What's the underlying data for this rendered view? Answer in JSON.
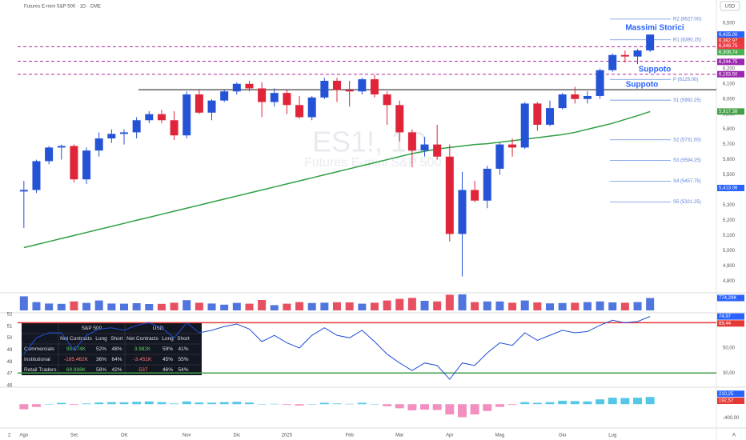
{
  "header": {
    "title": "Futures E-mini S&P 500 · 1D · CME",
    "currency": "USD",
    "watermark_symbol": "ES1!, 1D",
    "watermark_name": "Futures E-mini S&P 500",
    "corner_left": "2",
    "corner_right": "A"
  },
  "chart_data": [
    {
      "type": "candlestick",
      "up_color": "#2453d6",
      "down_color": "#e0243a",
      "categories": [
        "Ago",
        null,
        null,
        null,
        "Set",
        null,
        null,
        null,
        "Ott",
        null,
        null,
        null,
        null,
        "Nov",
        null,
        null,
        null,
        "Dic",
        null,
        null,
        null,
        "2025",
        null,
        null,
        null,
        null,
        "Feb",
        null,
        null,
        null,
        "Mar",
        null,
        null,
        null,
        "Apr",
        null,
        null,
        null,
        "Mag",
        null,
        null,
        null,
        null,
        "Giu",
        null,
        null,
        null,
        "Lug",
        null,
        null,
        null
      ],
      "open": [
        5390,
        5400,
        5590,
        5680,
        5690,
        5470,
        5660,
        5740,
        5770,
        5780,
        5860,
        5900,
        5860,
        5760,
        6030,
        5910,
        5990,
        6050,
        6100,
        6070,
        5980,
        6040,
        5960,
        5880,
        6010,
        6120,
        6060,
        6050,
        6130,
        6030,
        5960,
        5780,
        5660,
        5700,
        5620,
        5110,
        5400,
        5330,
        5540,
        5700,
        5680,
        5970,
        5830,
        5940,
        6030,
        6000,
        6020,
        6190,
        6290,
        6280,
        6320
      ],
      "high": [
        5460,
        5600,
        5690,
        5700,
        5700,
        5680,
        5780,
        5800,
        5800,
        5880,
        5920,
        5930,
        5920,
        6050,
        6060,
        6000,
        6060,
        6110,
        6120,
        6110,
        6070,
        6060,
        6020,
        6020,
        6140,
        6140,
        6120,
        6140,
        6160,
        6050,
        5990,
        5800,
        5750,
        5830,
        5700,
        5520,
        5460,
        5560,
        5710,
        5740,
        5980,
        5980,
        5990,
        6040,
        6080,
        6050,
        6200,
        6300,
        6320,
        6330,
        6425
      ],
      "low": [
        5150,
        5380,
        5570,
        5600,
        5450,
        5440,
        5620,
        5710,
        5700,
        5740,
        5840,
        5840,
        5730,
        5740,
        5900,
        5860,
        5980,
        6030,
        6050,
        5880,
        5950,
        5900,
        5870,
        5860,
        6000,
        5980,
        5950,
        6030,
        6010,
        5830,
        5720,
        5550,
        5620,
        5600,
        5060,
        4830,
        5320,
        5280,
        5500,
        5620,
        5670,
        5790,
        5820,
        5930,
        5970,
        5970,
        6000,
        6180,
        6240,
        6230,
        6310
      ],
      "close": [
        5400,
        5590,
        5680,
        5690,
        5470,
        5660,
        5740,
        5770,
        5780,
        5860,
        5900,
        5860,
        5760,
        6030,
        5910,
        5990,
        6050,
        6100,
        6070,
        5980,
        6040,
        5960,
        5880,
        6010,
        6120,
        6060,
        6050,
        6130,
        6030,
        5960,
        5780,
        5660,
        5700,
        5620,
        5110,
        5400,
        5330,
        5540,
        5700,
        5680,
        5970,
        5830,
        5940,
        6030,
        6000,
        6020,
        6190,
        6290,
        6280,
        6320,
        6425
      ],
      "ma_name": "MA 200",
      "ma_color": "#2ea043",
      "ma": [
        5020,
        5040,
        5060,
        5080,
        5100,
        5120,
        5140,
        5160,
        5180,
        5200,
        5220,
        5240,
        5260,
        5280,
        5300,
        5320,
        5340,
        5360,
        5380,
        5400,
        5420,
        5440,
        5460,
        5480,
        5500,
        5520,
        5540,
        5560,
        5580,
        5600,
        5620,
        5640,
        5655,
        5670,
        5680,
        5690,
        5700,
        5705,
        5715,
        5725,
        5735,
        5745,
        5755,
        5765,
        5780,
        5800,
        5820,
        5840,
        5865,
        5890,
        5917
      ],
      "ylim": [
        4780,
        6600
      ],
      "yticks": [
        {
          "value": 6500,
          "label": "6,500"
        },
        {
          "value": 6400,
          "label": "6,400"
        },
        {
          "value": 6300,
          "label": "6,300"
        },
        {
          "value": 6200,
          "label": "6,200"
        },
        {
          "value": 6100,
          "label": "6,100"
        },
        {
          "value": 6000,
          "label": "6,000"
        },
        {
          "value": 5900,
          "label": "5,900"
        },
        {
          "value": 5800,
          "label": "5,800"
        },
        {
          "value": 5700,
          "label": "5,700"
        },
        {
          "value": 5600,
          "label": "5,600"
        },
        {
          "value": 5500,
          "label": "5,500"
        },
        {
          "value": 5400,
          "label": "5,400"
        },
        {
          "value": 5300,
          "label": "5,300"
        },
        {
          "value": 5200,
          "label": "5,200"
        },
        {
          "value": 5100,
          "label": "5,100"
        },
        {
          "value": 5000,
          "label": "5,000"
        },
        {
          "value": 4900,
          "label": "4,900"
        },
        {
          "value": 4800,
          "label": "4,800"
        }
      ],
      "pivots": [
        {
          "value": 6527,
          "label": "R2 (6527.00)"
        },
        {
          "value": 6390.25,
          "label": "R1 (6390.25)"
        },
        {
          "value": 6129,
          "label": "P (6129.00)"
        },
        {
          "value": 5992.25,
          "label": "S1 (5992.25)"
        },
        {
          "value": 5731,
          "label": "S2 (5731.00)"
        },
        {
          "value": 5594.25,
          "label": "S3 (5594.25)"
        },
        {
          "value": 5457.75,
          "label": "S4 (5457.75)"
        },
        {
          "value": 5321.25,
          "label": "S5 (5321.25)"
        }
      ],
      "dashed_levels": [
        6345,
        6249,
        6163
      ],
      "dashed_color": "#b0279b",
      "support_level": 6061,
      "annotations": [
        "Massimi Storici",
        "Suppoto",
        "Suppoto"
      ],
      "price_tags": [
        {
          "value": 6425,
          "label": "6,425.00",
          "color": "#2962ff"
        },
        {
          "value": 6382.97,
          "label": "6,382.97",
          "color": "#e53935"
        },
        {
          "value": 6348.75,
          "label": "6,348.75",
          "color": "#f23645"
        },
        {
          "value": 6308.74,
          "label": "6,308.74",
          "color": "#4caf50"
        },
        {
          "value": 6244.75,
          "label": "6,244.75",
          "color": "#9c27b0"
        },
        {
          "value": 6163.5,
          "label": "6,163.50",
          "color": "#9c27b0"
        },
        {
          "value": 5917.38,
          "label": "5,917.38",
          "color": "#43a047"
        },
        {
          "value": 5413.06,
          "label": "5,413.06",
          "color": "#2962ff"
        }
      ]
    },
    {
      "type": "volume",
      "values": [
        880,
        520,
        430,
        410,
        560,
        470,
        620,
        430,
        420,
        450,
        400,
        410,
        480,
        640,
        480,
        430,
        360,
        470,
        420,
        650,
        330,
        420,
        520,
        460,
        480,
        510,
        500,
        420,
        480,
        620,
        720,
        780,
        600,
        560,
        980,
        1000,
        520,
        560,
        560,
        480,
        620,
        500,
        440,
        460,
        480,
        520,
        560,
        500,
        480,
        520,
        774.29
      ],
      "ylim": [
        0,
        1000
      ],
      "tag": {
        "value": 774.29,
        "label": "774,29K",
        "color": "#2962ff"
      }
    },
    {
      "type": "rsi",
      "color": "#1e4fd8",
      "values": [
        45,
        58,
        62,
        62,
        48,
        60,
        65,
        66,
        64,
        68,
        70,
        66,
        58,
        70,
        62,
        64,
        67,
        69,
        65,
        55,
        60,
        54,
        50,
        60,
        66,
        60,
        58,
        64,
        55,
        45,
        38,
        32,
        38,
        36,
        25,
        38,
        36,
        46,
        54,
        52,
        62,
        56,
        60,
        64,
        62,
        63,
        68,
        72,
        70,
        71,
        74.97
      ],
      "ylim": [
        20,
        76
      ],
      "yticks": [
        {
          "value": 50,
          "label": "50,00"
        },
        {
          "value": 30,
          "label": "30,00"
        }
      ],
      "upper": 70,
      "lower": 30,
      "left_labels": [
        52,
        51,
        50,
        49,
        48,
        47,
        46
      ],
      "tags": [
        {
          "value": 74.97,
          "label": "74,97",
          "color": "#2962ff"
        },
        {
          "value": 69.44,
          "label": "69,44",
          "color": "#e53935"
        }
      ]
    },
    {
      "type": "histogram",
      "values": [
        -150,
        -80,
        0,
        40,
        -20,
        20,
        50,
        60,
        55,
        70,
        80,
        60,
        20,
        80,
        50,
        45,
        60,
        70,
        50,
        0,
        10,
        -20,
        -40,
        0,
        40,
        20,
        10,
        40,
        0,
        -60,
        -120,
        -180,
        -160,
        -170,
        -300,
        -380,
        -300,
        -200,
        -80,
        -20,
        60,
        40,
        60,
        100,
        90,
        80,
        140,
        190,
        180,
        190,
        210.25
      ],
      "pos_color": "#55c7e6",
      "neg_color": "#f28fc0",
      "ylim": [
        -650,
        450
      ],
      "yticks": [
        {
          "value": -400,
          "label": "-400,00"
        }
      ],
      "tags": [
        {
          "value": 210.25,
          "label": "210,25",
          "color": "#2962ff"
        },
        {
          "value": 192.57,
          "label": "192,57",
          "color": "#e53935"
        }
      ]
    }
  ],
  "table": {
    "group_headers": [
      "S&P 500",
      "USD"
    ],
    "columns": [
      "Net Contracts",
      "Long",
      "Short",
      "Net Contracts",
      "Long",
      "Short"
    ],
    "rows": [
      [
        "Commercials",
        "95.574K",
        "52%",
        "48%",
        "3.982K",
        "59%",
        "41%"
      ],
      [
        "Institutional",
        "-185.462K",
        "36%",
        "64%",
        "-3.451K",
        "45%",
        "55%"
      ],
      [
        "Retail Traders",
        "69.888K",
        "58%",
        "42%",
        "-537",
        "46%",
        "54%"
      ]
    ]
  }
}
